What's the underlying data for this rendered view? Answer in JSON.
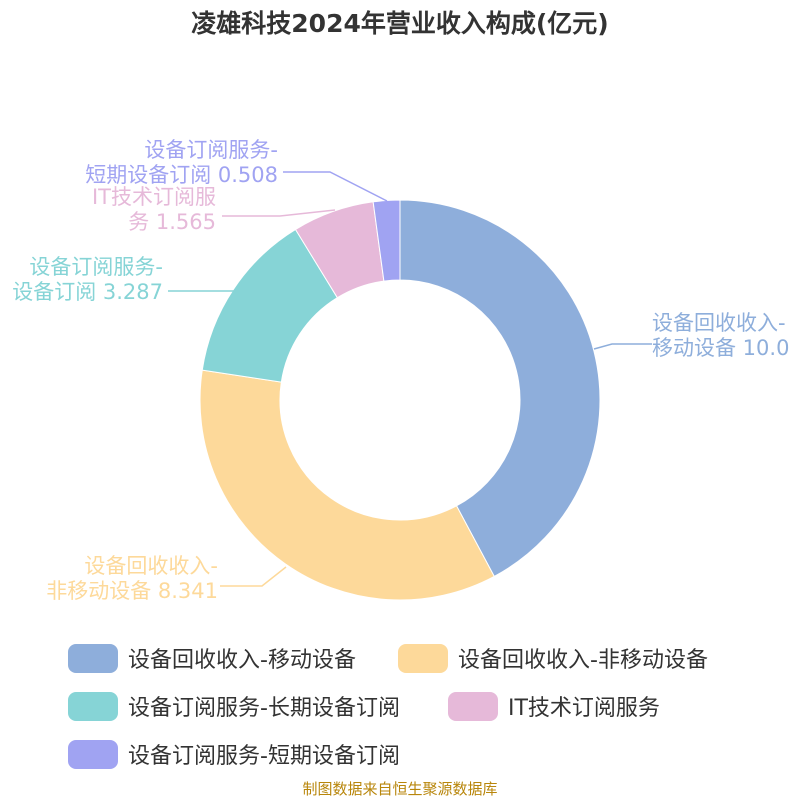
{
  "title": "凌雄科技2024年营业收入构成(亿元)",
  "source": "制图数据来自恒生聚源数据库",
  "chart_data": {
    "type": "pie",
    "donut": true,
    "title": "凌雄科技2024年营业收入构成(亿元)",
    "slices": [
      {
        "name": "设备回收收入-移动设备",
        "label_lines": [
          "设备回收收入-",
          "移动设备 10.0"
        ],
        "value": 10.0,
        "color": "#8eaedb"
      },
      {
        "name": "设备回收收入-非移动设备",
        "label_lines": [
          "设备回收收入-",
          "非移动设备 8.341"
        ],
        "value": 8.341,
        "color": "#fdd99a"
      },
      {
        "name": "设备订阅服务-长期设备订阅",
        "label_lines": [
          "设备订阅服务-",
          "设备订阅 3.287"
        ],
        "value": 3.287,
        "color": "#86d4d6"
      },
      {
        "name": "IT技术订阅服务",
        "label_lines": [
          "IT技术订阅服",
          "务 1.565"
        ],
        "value": 1.565,
        "color": "#e6b9d9"
      },
      {
        "name": "设备订阅服务-短期设备订阅",
        "label_lines": [
          "设备订阅服务-",
          "短期设备订阅 0.508"
        ],
        "value": 0.508,
        "color": "#a0a3f2"
      }
    ],
    "legend_position": "bottom"
  }
}
